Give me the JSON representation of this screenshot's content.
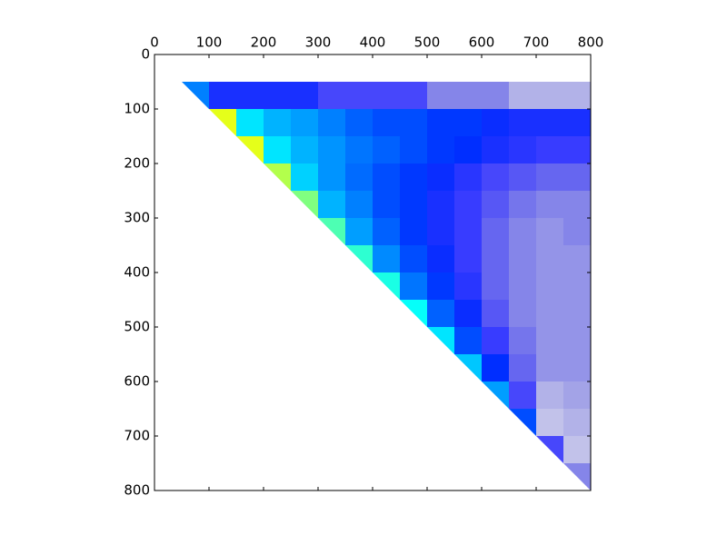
{
  "chart_data": {
    "type": "heatmap",
    "colormap": "jet",
    "xlim": [
      0,
      800
    ],
    "ylim": [
      0,
      800
    ],
    "y_inverted": true,
    "x_axis_position": "top",
    "xticks": [
      0,
      100,
      200,
      300,
      400,
      500,
      600,
      700,
      800
    ],
    "yticks": [
      0,
      100,
      200,
      300,
      400,
      500,
      600,
      700,
      800
    ],
    "cell_size": 50,
    "z": [
      [
        null,
        null,
        null,
        null,
        null,
        null,
        null,
        null,
        null,
        null,
        null,
        null,
        null,
        null,
        null,
        null
      ],
      [
        null,
        0.25,
        0.15,
        0.15,
        0.15,
        0.15,
        0.12,
        0.12,
        0.12,
        0.12,
        0.08,
        0.08,
        0.08,
        0.05,
        0.05,
        0.05
      ],
      [
        null,
        null,
        0.6,
        0.35,
        0.3,
        0.28,
        0.25,
        0.22,
        0.2,
        0.2,
        0.18,
        0.18,
        0.16,
        0.15,
        0.15,
        0.15
      ],
      [
        null,
        null,
        null,
        0.6,
        0.35,
        0.3,
        0.27,
        0.24,
        0.22,
        0.2,
        0.18,
        0.17,
        0.15,
        0.14,
        0.13,
        0.13
      ],
      [
        null,
        null,
        null,
        null,
        0.55,
        0.33,
        0.27,
        0.23,
        0.2,
        0.18,
        0.16,
        0.14,
        0.12,
        0.11,
        0.1,
        0.1
      ],
      [
        null,
        null,
        null,
        null,
        null,
        0.5,
        0.3,
        0.25,
        0.2,
        0.18,
        0.15,
        0.13,
        0.11,
        0.09,
        0.08,
        0.08
      ],
      [
        null,
        null,
        null,
        null,
        null,
        null,
        0.45,
        0.28,
        0.22,
        0.18,
        0.15,
        0.13,
        0.1,
        0.08,
        0.07,
        0.08
      ],
      [
        null,
        null,
        null,
        null,
        null,
        null,
        null,
        0.42,
        0.26,
        0.2,
        0.16,
        0.13,
        0.1,
        0.08,
        0.07,
        0.07
      ],
      [
        null,
        null,
        null,
        null,
        null,
        null,
        null,
        null,
        0.4,
        0.24,
        0.18,
        0.14,
        0.1,
        0.08,
        0.07,
        0.07
      ],
      [
        null,
        null,
        null,
        null,
        null,
        null,
        null,
        null,
        null,
        0.38,
        0.22,
        0.16,
        0.11,
        0.08,
        0.07,
        0.07
      ],
      [
        null,
        null,
        null,
        null,
        null,
        null,
        null,
        null,
        null,
        null,
        0.35,
        0.2,
        0.13,
        0.09,
        0.07,
        0.07
      ],
      [
        null,
        null,
        null,
        null,
        null,
        null,
        null,
        null,
        null,
        null,
        null,
        0.32,
        0.17,
        0.1,
        0.07,
        0.07
      ],
      [
        null,
        null,
        null,
        null,
        null,
        null,
        null,
        null,
        null,
        null,
        null,
        null,
        0.28,
        0.12,
        0.05,
        0.06
      ],
      [
        null,
        null,
        null,
        null,
        null,
        null,
        null,
        null,
        null,
        null,
        null,
        null,
        null,
        0.2,
        0.04,
        0.05
      ],
      [
        null,
        null,
        null,
        null,
        null,
        null,
        null,
        null,
        null,
        null,
        null,
        null,
        null,
        null,
        0.12,
        0.04
      ],
      [
        null,
        null,
        null,
        null,
        null,
        null,
        null,
        null,
        null,
        null,
        null,
        null,
        null,
        null,
        null,
        0.08
      ]
    ]
  }
}
